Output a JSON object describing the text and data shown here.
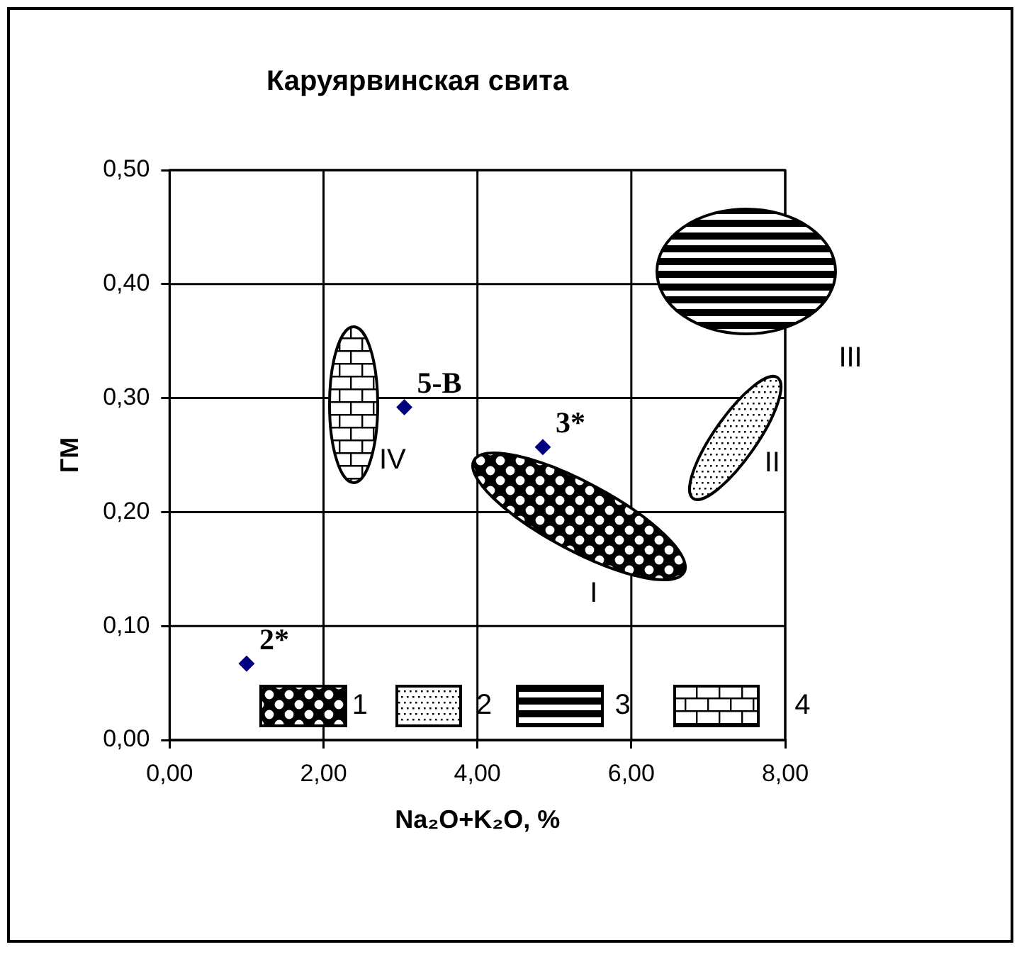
{
  "chart_data": {
    "type": "scatter",
    "title": "Каруярвинская свита",
    "xlabel": "Na₂O+K₂O, %",
    "ylabel": "ГМ",
    "x": [
      1.0,
      3.05,
      4.85
    ],
    "series": [
      {
        "color": "#000080",
        "values": [
          0.067,
          0.292,
          0.257
        ]
      }
    ],
    "xlim": [
      0,
      8
    ],
    "xticks": [
      {
        "value": 0,
        "label": "0,00"
      },
      {
        "value": 2,
        "label": "2,00"
      },
      {
        "value": 4,
        "label": "4,00"
      },
      {
        "value": 6,
        "label": "6,00"
      },
      {
        "value": 8,
        "label": "8,00"
      }
    ],
    "ylim": [
      0,
      0.5
    ],
    "yticks": [
      {
        "value": 0,
        "label": "0,00"
      },
      {
        "value": 0.1,
        "label": "0,10"
      },
      {
        "value": 0.2,
        "label": "0,20"
      },
      {
        "value": 0.3,
        "label": "0,30"
      },
      {
        "value": 0.4,
        "label": "0,40"
      },
      {
        "value": 0.5,
        "label": "0,50"
      }
    ],
    "grid": true,
    "marker": "diamond",
    "legend": false,
    "annotations": [
      {
        "text": "2*",
        "x": 1.0,
        "y": 0.067
      },
      {
        "text": "5-В",
        "x": 3.05,
        "y": 0.292
      },
      {
        "text": "3*",
        "x": 4.85,
        "y": 0.257
      },
      "I",
      "II",
      "III",
      "IV",
      "1",
      "2",
      "3",
      "4"
    ]
  }
}
